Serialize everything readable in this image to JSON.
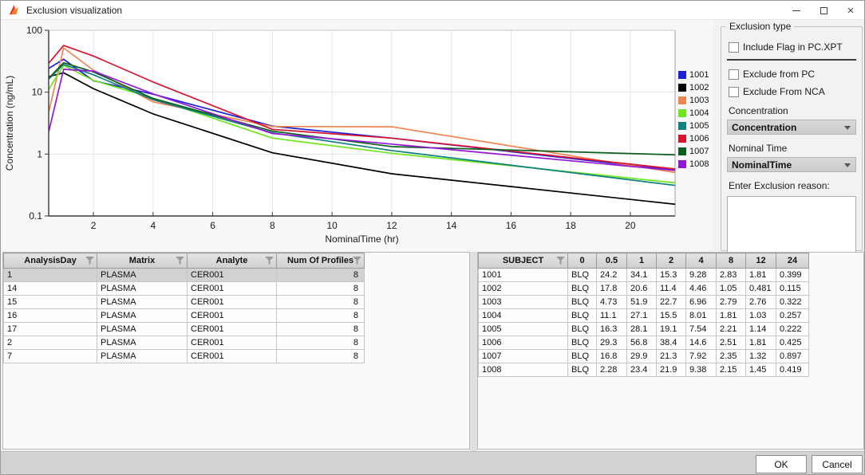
{
  "window": {
    "title": "Exclusion visualization",
    "controls": {
      "close_glyph": "×"
    }
  },
  "chart_data": {
    "type": "line",
    "title": "",
    "xlabel": "NominalTime (hr)",
    "ylabel": "Concentration (ng/mL)",
    "yscale": "log",
    "grid": true,
    "legend_position": "right",
    "x": [
      0.5,
      1,
      2,
      4,
      8,
      12,
      24
    ],
    "series": [
      {
        "name": "1001",
        "color": "#1f1fd8",
        "values": [
          24.2,
          34.1,
          15.3,
          9.28,
          2.83,
          1.81,
          0.399
        ]
      },
      {
        "name": "1002",
        "color": "#000000",
        "values": [
          17.8,
          20.6,
          11.4,
          4.46,
          1.05,
          0.481,
          0.115
        ]
      },
      {
        "name": "1003",
        "color": "#f08552",
        "values": [
          4.73,
          51.9,
          22.7,
          6.96,
          2.79,
          2.76,
          0.322
        ]
      },
      {
        "name": "1004",
        "color": "#6ee61f",
        "values": [
          11.1,
          27.1,
          15.5,
          8.01,
          1.81,
          1.03,
          0.257
        ]
      },
      {
        "name": "1005",
        "color": "#0f8080",
        "values": [
          16.3,
          28.1,
          19.1,
          7.54,
          2.21,
          1.14,
          0.222
        ]
      },
      {
        "name": "1006",
        "color": "#d81430",
        "values": [
          29.3,
          56.8,
          38.4,
          14.6,
          2.51,
          1.81,
          0.425
        ]
      },
      {
        "name": "1007",
        "color": "#0b5e1d",
        "values": [
          16.8,
          29.9,
          21.3,
          7.92,
          2.35,
          1.32,
          0.897
        ]
      },
      {
        "name": "1008",
        "color": "#9318d6",
        "values": [
          2.28,
          23.4,
          21.9,
          9.38,
          2.15,
          1.45,
          0.419
        ]
      }
    ],
    "xticks": [
      2,
      4,
      6,
      8,
      10,
      12,
      14,
      16,
      18,
      20
    ],
    "yticks": [
      "100",
      "10",
      "1",
      "0.1"
    ],
    "xlim": [
      0.5,
      21.5
    ],
    "ylim": [
      0.1,
      100
    ]
  },
  "exclusion_panel": {
    "group_title": "Exclusion type",
    "checkboxes": [
      {
        "label": "Include Flag in PC.XPT",
        "checked": false
      },
      {
        "label": "Exclude from PC",
        "checked": false
      },
      {
        "label": "Exclude From NCA",
        "checked": false
      }
    ],
    "concentration_label": "Concentration",
    "concentration_value": "Concentration",
    "nominal_time_label": "Nominal Time",
    "nominal_time_value": "NominalTime",
    "reason_label": "Enter Exclusion reason:",
    "reason_value": ""
  },
  "profiles_table": {
    "headers": [
      "AnalysisDay",
      "Matrix",
      "Analyte",
      "Num Of Profiles"
    ],
    "header_filters": [
      true,
      true,
      true,
      true
    ],
    "selected_row_index": 0,
    "rows": [
      [
        "1",
        "PLASMA",
        "CER001",
        "8"
      ],
      [
        "14",
        "PLASMA",
        "CER001",
        "8"
      ],
      [
        "15",
        "PLASMA",
        "CER001",
        "8"
      ],
      [
        "16",
        "PLASMA",
        "CER001",
        "8"
      ],
      [
        "17",
        "PLASMA",
        "CER001",
        "8"
      ],
      [
        "2",
        "PLASMA",
        "CER001",
        "8"
      ],
      [
        "7",
        "PLASMA",
        "CER001",
        "8"
      ]
    ]
  },
  "subjects_table": {
    "headers": [
      "SUBJECT",
      "0",
      "0.5",
      "1",
      "2",
      "4",
      "8",
      "12",
      "24"
    ],
    "header_filters": [
      true,
      false,
      false,
      false,
      false,
      false,
      false,
      false,
      false
    ],
    "selected_row_index": -1,
    "rows": [
      [
        "1001",
        "BLQ",
        "24.2",
        "34.1",
        "15.3",
        "9.28",
        "2.83",
        "1.81",
        "0.399"
      ],
      [
        "1002",
        "BLQ",
        "17.8",
        "20.6",
        "11.4",
        "4.46",
        "1.05",
        "0.481",
        "0.115"
      ],
      [
        "1003",
        "BLQ",
        "4.73",
        "51.9",
        "22.7",
        "6.96",
        "2.79",
        "2.76",
        "0.322"
      ],
      [
        "1004",
        "BLQ",
        "11.1",
        "27.1",
        "15.5",
        "8.01",
        "1.81",
        "1.03",
        "0.257"
      ],
      [
        "1005",
        "BLQ",
        "16.3",
        "28.1",
        "19.1",
        "7.54",
        "2.21",
        "1.14",
        "0.222"
      ],
      [
        "1006",
        "BLQ",
        "29.3",
        "56.8",
        "38.4",
        "14.6",
        "2.51",
        "1.81",
        "0.425"
      ],
      [
        "1007",
        "BLQ",
        "16.8",
        "29.9",
        "21.3",
        "7.92",
        "2.35",
        "1.32",
        "0.897"
      ],
      [
        "1008",
        "BLQ",
        "2.28",
        "23.4",
        "21.9",
        "9.38",
        "2.15",
        "1.45",
        "0.419"
      ]
    ]
  },
  "footer": {
    "ok_label": "OK",
    "cancel_label": "Cancel"
  }
}
